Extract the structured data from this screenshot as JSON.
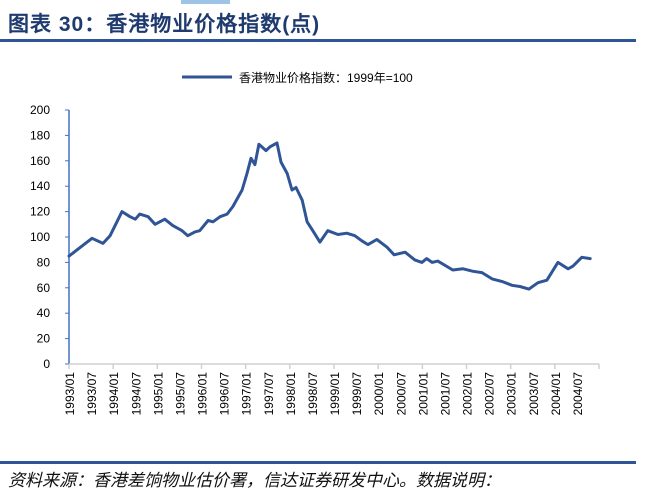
{
  "header": {
    "title": "图表 30：香港物业价格指数(点)"
  },
  "footer": {
    "source": "资料来源：香港差饷物业估价署，信达证券研发中心。数据说明："
  },
  "colors": {
    "line": "#2f5597",
    "rule": "#2f5597",
    "title": "#1f3a6e",
    "yaxis": "#4472c4",
    "xaxis": "#d0d0d0"
  },
  "chart_data": {
    "type": "line",
    "title": "",
    "xlabel": "",
    "ylabel": "",
    "xlim": [
      1993,
      2005
    ],
    "ylim": [
      0,
      200
    ],
    "yticks": [
      0,
      20,
      40,
      60,
      80,
      100,
      120,
      140,
      160,
      180,
      200
    ],
    "xtick_labels": [
      "1993/01",
      "1993/07",
      "1994/01",
      "1994/07",
      "1995/01",
      "1995/07",
      "1996/01",
      "1996/07",
      "1997/01",
      "1997/07",
      "1998/01",
      "1998/07",
      "1999/01",
      "1999/07",
      "2000/01",
      "2000/07",
      "2001/01",
      "2001/07",
      "2002/01",
      "2002/07",
      "2003/01",
      "2003/07",
      "2004/01",
      "2004/07"
    ],
    "grid": false,
    "legend_position": "top-center",
    "series": [
      {
        "name": "香港物业价格指数：1999年=100",
        "x": [
          1993.0,
          1993.52,
          1993.77,
          1993.93,
          1994.2,
          1994.38,
          1994.5,
          1994.6,
          1994.79,
          1994.95,
          1995.17,
          1995.35,
          1995.56,
          1995.69,
          1995.85,
          1995.96,
          1996.15,
          1996.26,
          1996.42,
          1996.58,
          1996.71,
          1996.92,
          1997.03,
          1997.12,
          1997.21,
          1997.3,
          1997.46,
          1997.55,
          1997.71,
          1997.8,
          1997.94,
          1998.05,
          1998.14,
          1998.28,
          1998.39,
          1998.52,
          1998.68,
          1998.86,
          1999.09,
          1999.29,
          1999.47,
          1999.63,
          1999.77,
          1999.97,
          2000.2,
          2000.36,
          2000.61,
          2000.83,
          2000.99,
          2001.1,
          2001.22,
          2001.35,
          2001.69,
          2001.92,
          2002.15,
          2002.35,
          2002.58,
          2002.8,
          2003.03,
          2003.21,
          2003.41,
          2003.62,
          2003.82,
          2004.07,
          2004.3,
          2004.41,
          2004.61,
          2004.8
        ],
        "y": [
          85,
          99,
          95,
          101,
          120,
          116,
          114,
          118,
          116,
          110,
          114,
          109,
          105,
          101,
          104,
          105,
          113,
          112,
          116,
          118,
          124,
          137,
          150,
          162,
          157,
          173,
          168,
          171,
          174,
          159,
          150,
          137,
          139,
          129,
          112,
          105,
          96,
          105,
          102,
          103,
          101,
          97,
          94,
          98,
          92,
          86,
          88,
          82,
          80,
          83,
          80,
          81,
          74,
          75,
          73,
          72,
          67,
          65,
          62,
          61,
          59,
          64,
          66,
          80,
          75,
          77,
          84,
          83
        ]
      }
    ]
  }
}
